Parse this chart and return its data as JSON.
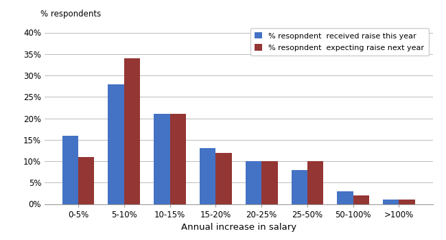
{
  "categories": [
    "0-5%",
    "5-10%",
    "10-15%",
    "15-20%",
    "20-25%",
    "25-50%",
    "50-100%",
    ">100%"
  ],
  "series1_values": [
    16,
    28,
    21,
    13,
    10,
    8,
    3,
    1
  ],
  "series2_values": [
    11,
    34,
    21,
    12,
    10,
    10,
    2,
    1
  ],
  "series1_label": "% resopndent  received raise this year",
  "series2_label": "% resopndent  expecting raise next year",
  "series1_color": "#4472C4",
  "series2_color": "#943634",
  "ylabel": "% respondents",
  "xlabel": "Annual increase in salary",
  "ylim": [
    0,
    42
  ],
  "yticks": [
    0,
    5,
    10,
    15,
    20,
    25,
    30,
    35,
    40
  ],
  "ytick_labels": [
    "0%",
    "5%",
    "10%",
    "15%",
    "20%",
    "25%",
    "30%",
    "35%",
    "40%"
  ],
  "grid_color": "#bbbbbb",
  "background_color": "#ffffff",
  "bar_width": 0.35
}
